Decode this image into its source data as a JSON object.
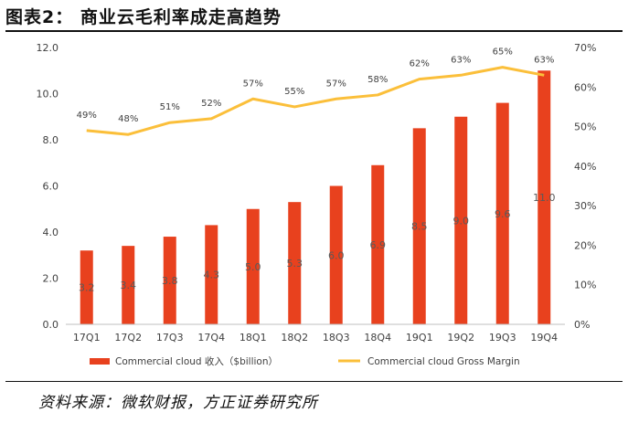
{
  "figure": {
    "title": "图表2： 商业云毛利率成走高趋势",
    "source": "资料来源：微软财报，方正证券研究所"
  },
  "colors": {
    "bar": "#e8411e",
    "line": "#fbbf3a",
    "axis_text": "#404040",
    "label_text": "#595959"
  },
  "chart_data": {
    "type": "bar",
    "categories": [
      "17Q1",
      "17Q2",
      "17Q3",
      "17Q4",
      "18Q1",
      "18Q2",
      "18Q3",
      "18Q4",
      "19Q1",
      "19Q2",
      "19Q3",
      "19Q4"
    ],
    "series": [
      {
        "name": "Commercial cloud 收入（$billion）",
        "type": "bar",
        "axis": "left",
        "values": [
          3.2,
          3.4,
          3.8,
          4.3,
          5.0,
          5.3,
          6.0,
          6.9,
          8.5,
          9.0,
          9.6,
          11.0
        ],
        "labels": [
          "3.2",
          "3.4",
          "3.8",
          "4.3",
          "5.0",
          "5.3",
          "6.0",
          "6.9",
          "8.5",
          "9.0",
          "9.6",
          "11.0"
        ]
      },
      {
        "name": "Commercial cloud Gross Margin",
        "type": "line",
        "axis": "right",
        "values": [
          49,
          48,
          51,
          52,
          57,
          55,
          57,
          58,
          62,
          63,
          65,
          63
        ],
        "labels": [
          "49%",
          "48%",
          "51%",
          "52%",
          "57%",
          "55%",
          "57%",
          "58%",
          "62%",
          "63%",
          "65%",
          "63%"
        ]
      }
    ],
    "y_left": {
      "min": 0,
      "max": 12,
      "ticks": [
        "0.0",
        "2.0",
        "4.0",
        "6.0",
        "8.0",
        "10.0",
        "12.0"
      ]
    },
    "y_right": {
      "min": 0,
      "max": 70,
      "ticks": [
        "0%",
        "10%",
        "20%",
        "30%",
        "40%",
        "50%",
        "60%",
        "70%"
      ]
    },
    "legend_position": "bottom",
    "grid": false
  }
}
